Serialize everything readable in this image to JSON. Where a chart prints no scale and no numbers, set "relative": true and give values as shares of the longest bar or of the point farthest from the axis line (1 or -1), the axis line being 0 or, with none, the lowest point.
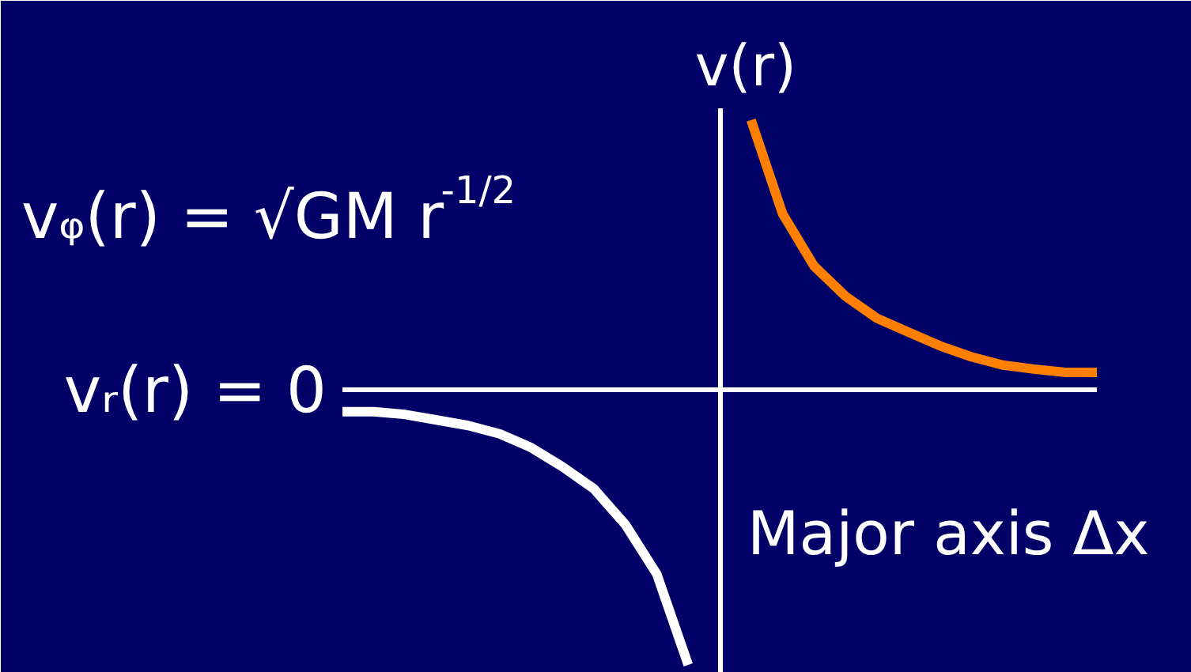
{
  "chart_data": {
    "type": "line",
    "relative": true,
    "ylabel": "v(r)",
    "xlabel": "Major axis Δx",
    "annotations": [
      "vᵩ(r) = √GM r$^{-1/2}$",
      "vᵣ(r) = 0"
    ],
    "categories": [
      null,
      null,
      null,
      null,
      null,
      null,
      null,
      null,
      null,
      null,
      null,
      null,
      null,
      null,
      null,
      null,
      null,
      null,
      null,
      null,
      null,
      null,
      null,
      null,
      null
    ],
    "series": [
      {
        "color": "#ffffff",
        "values": [
          -0.08,
          -0.08,
          -0.09,
          -0.11,
          -0.13,
          -0.16,
          -0.21,
          -0.28,
          -0.36,
          -0.49,
          -0.67,
          -1,
          null,
          null,
          null,
          null,
          null,
          null,
          null,
          null,
          null,
          null,
          null,
          null,
          null
        ]
      },
      {
        "color": "#ff8000",
        "values": [
          null,
          null,
          null,
          null,
          null,
          null,
          null,
          null,
          null,
          null,
          null,
          null,
          null,
          0.98,
          0.64,
          0.45,
          0.34,
          0.26,
          0.21,
          0.16,
          0.12,
          0.09,
          0.075,
          0.063,
          0.063
        ]
      }
    ]
  }
}
